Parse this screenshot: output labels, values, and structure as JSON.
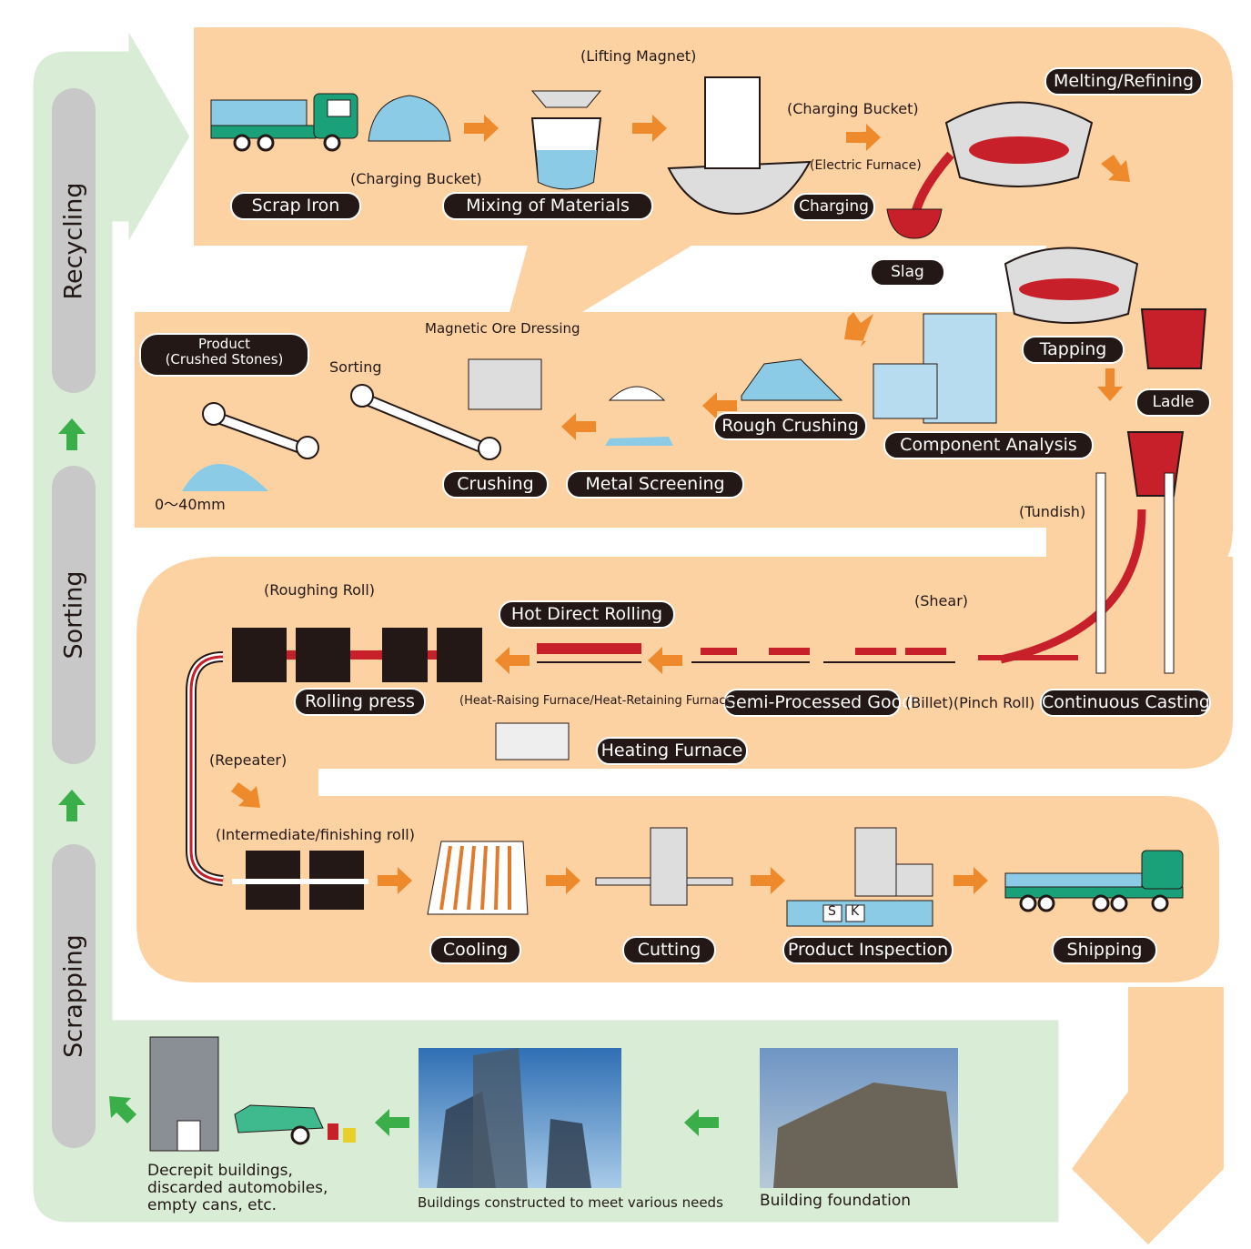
{
  "side_labels": [
    "Recycling",
    "Sorting",
    "Scrapping"
  ],
  "step_labels": [
    "Scrap Iron",
    "Mixing of Materials",
    "Charging",
    "Melting/Refining",
    "Slag",
    "Tapping",
    "Ladle",
    "Rough Crushing",
    "Component Analysis",
    "Metal Screening",
    "Crushing",
    "Hot Direct Rolling",
    "Rolling press",
    "Semi-Processed Goods",
    "Continuous Casting",
    "Heating Furnace",
    "Cooling",
    "Cutting",
    "Product Inspection",
    "Shipping"
  ],
  "product_label": [
    "Product",
    "(Crushed Stones)"
  ],
  "notes": [
    "(Lifting Magnet)",
    "(Charging Bucket)",
    "(Charging Bucket)",
    "(Electric Furnace)",
    "Magnetic Ore Dressing",
    "Sorting",
    "0〜40mm",
    "(Tundish)",
    "(Shear)",
    "(Roughing Roll)",
    "(Heat-Raising Furnace/Heat-Retaining Furnace)",
    "(Billet)(Pinch Roll)",
    "(Repeater)",
    "(Intermediate/finishing roll)"
  ],
  "inspection_marks": [
    "S",
    "K"
  ],
  "captions": {
    "scrap": [
      "Decrepit buildings,",
      "discarded automobiles,",
      "empty cans, etc."
    ],
    "buildings": "Buildings constructed to meet various needs",
    "foundation": "Building foundation"
  }
}
